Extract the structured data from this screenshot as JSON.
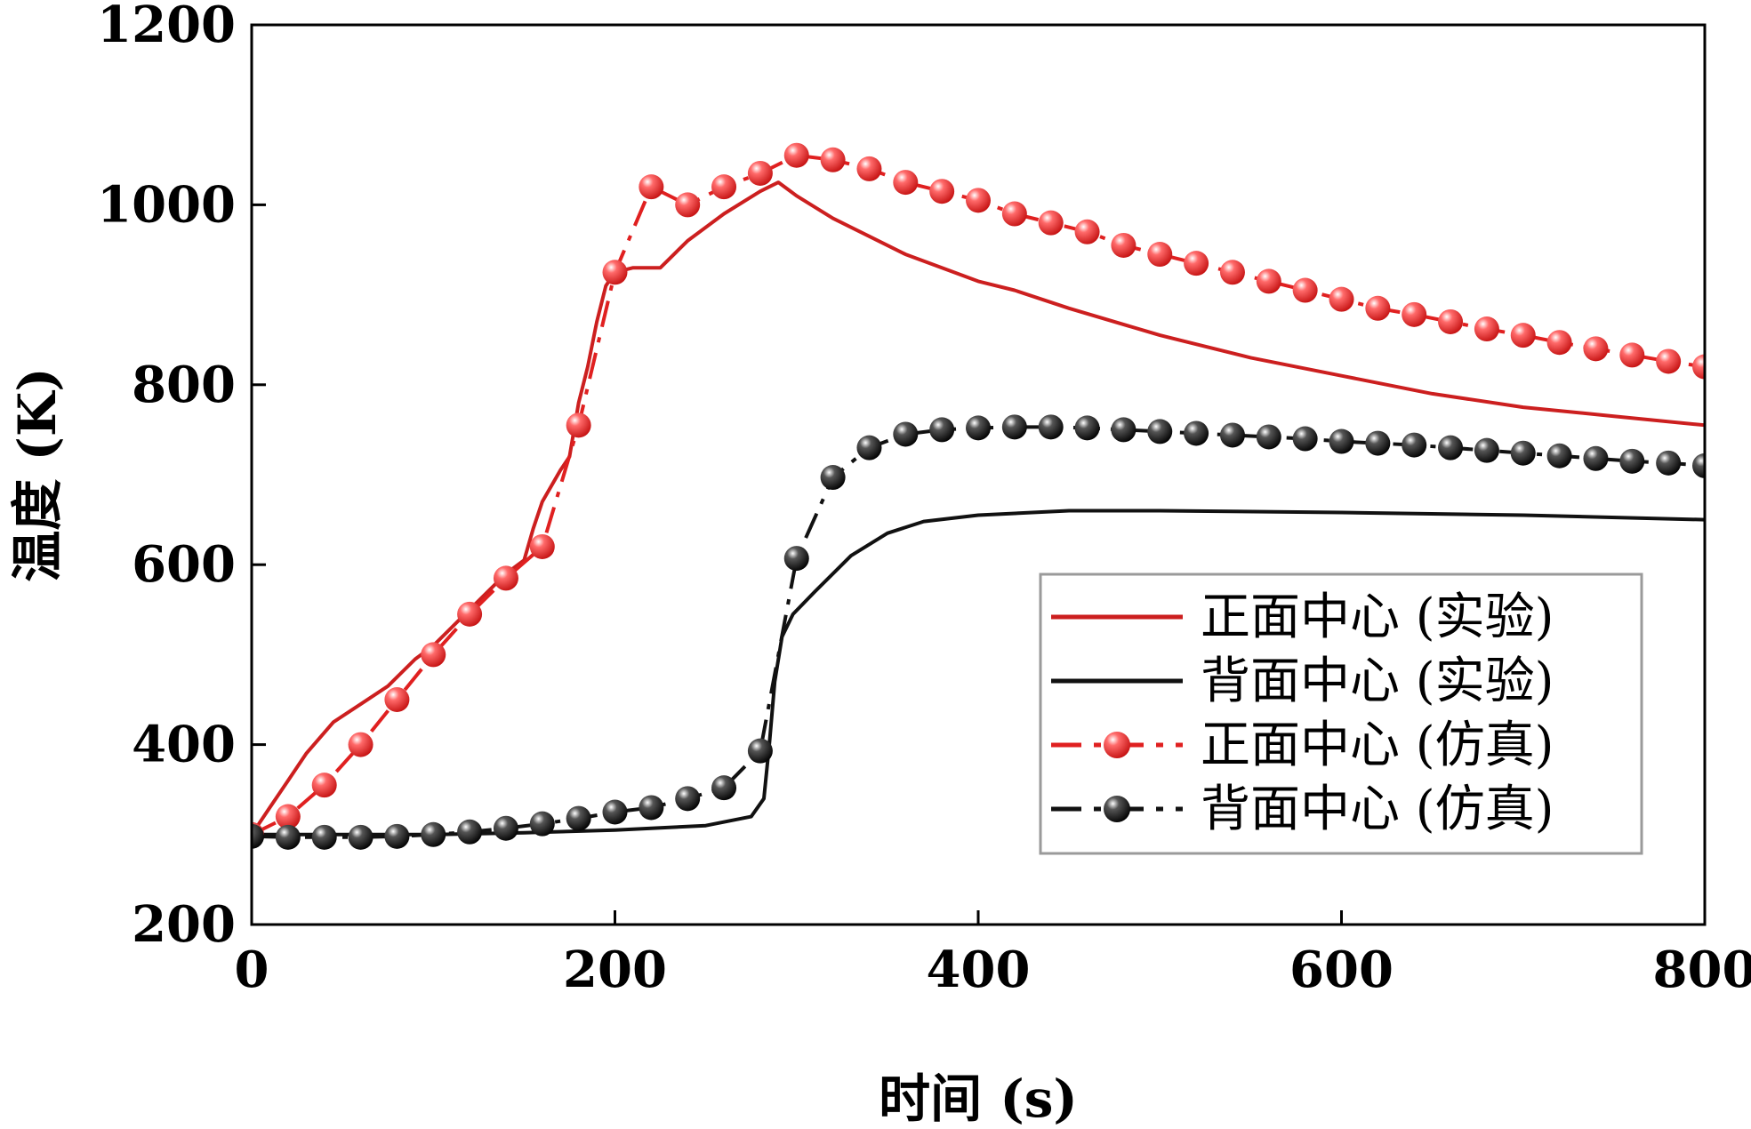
{
  "chart_data": {
    "type": "line",
    "title": "",
    "xlabel": "时间 (s)",
    "ylabel": "温度 (K)",
    "xlim": [
      0,
      800
    ],
    "ylim": [
      200,
      1200
    ],
    "xticks": [
      0,
      200,
      400,
      600,
      800
    ],
    "yticks": [
      200,
      400,
      600,
      800,
      1000,
      1200
    ],
    "grid": false,
    "legend_position": "bottom-right",
    "series": [
      {
        "name": "正面中心 (实验)",
        "color": "#cc1f1f",
        "style": "solid",
        "marker": "none",
        "x": [
          0,
          10,
          20,
          30,
          45,
          60,
          75,
          90,
          100,
          110,
          120,
          130,
          140,
          150,
          155,
          160,
          170,
          175,
          180,
          185,
          190,
          195,
          200,
          210,
          225,
          240,
          260,
          280,
          290,
          300,
          320,
          340,
          360,
          380,
          400,
          420,
          450,
          500,
          550,
          600,
          650,
          700,
          750,
          800
        ],
        "y": [
          300,
          330,
          360,
          390,
          425,
          445,
          465,
          495,
          510,
          530,
          550,
          570,
          590,
          605,
          640,
          670,
          705,
          720,
          780,
          820,
          870,
          910,
          925,
          930,
          930,
          960,
          990,
          1015,
          1025,
          1010,
          985,
          965,
          945,
          930,
          915,
          905,
          885,
          855,
          830,
          810,
          790,
          775,
          765,
          755
        ]
      },
      {
        "name": "背面中心 (实验)",
        "color": "#111111",
        "style": "solid",
        "marker": "none",
        "x": [
          0,
          50,
          100,
          150,
          200,
          250,
          275,
          282,
          285,
          288,
          292,
          298,
          310,
          330,
          350,
          370,
          400,
          450,
          500,
          600,
          700,
          800
        ],
        "y": [
          300,
          300,
          300,
          302,
          305,
          310,
          320,
          340,
          400,
          470,
          520,
          545,
          570,
          610,
          635,
          648,
          655,
          660,
          660,
          658,
          655,
          650
        ]
      },
      {
        "name": "正面中心 (仿真)",
        "color": "#e02020",
        "style": "dashdot",
        "marker": "sphere",
        "x": [
          0,
          20,
          40,
          60,
          80,
          100,
          120,
          140,
          160,
          180,
          200,
          220,
          240,
          260,
          280,
          300,
          320,
          340,
          360,
          380,
          400,
          420,
          440,
          460,
          480,
          500,
          520,
          540,
          560,
          580,
          600,
          620,
          640,
          660,
          680,
          700,
          720,
          740,
          760,
          780,
          800
        ],
        "y": [
          300,
          320,
          355,
          400,
          450,
          500,
          545,
          585,
          620,
          755,
          925,
          1020,
          1000,
          1020,
          1035,
          1055,
          1050,
          1040,
          1025,
          1015,
          1005,
          990,
          980,
          970,
          955,
          945,
          935,
          925,
          915,
          905,
          895,
          885,
          878,
          870,
          862,
          855,
          847,
          840,
          833,
          826,
          820
        ]
      },
      {
        "name": "背面中心 (仿真)",
        "color": "#111111",
        "style": "dashdot",
        "marker": "sphere",
        "x": [
          0,
          20,
          40,
          60,
          80,
          100,
          120,
          140,
          160,
          180,
          200,
          220,
          240,
          260,
          280,
          300,
          320,
          340,
          360,
          380,
          400,
          420,
          440,
          460,
          480,
          500,
          520,
          540,
          560,
          580,
          600,
          620,
          640,
          660,
          680,
          700,
          720,
          740,
          760,
          780,
          800
        ],
        "y": [
          298,
          297,
          297,
          297,
          298,
          300,
          303,
          307,
          312,
          318,
          325,
          330,
          340,
          352,
          393,
          607,
          697,
          730,
          745,
          750,
          752,
          753,
          753,
          752,
          750,
          748,
          746,
          744,
          742,
          740,
          737,
          735,
          733,
          730,
          727,
          724,
          721,
          718,
          715,
          713,
          710
        ]
      }
    ]
  }
}
